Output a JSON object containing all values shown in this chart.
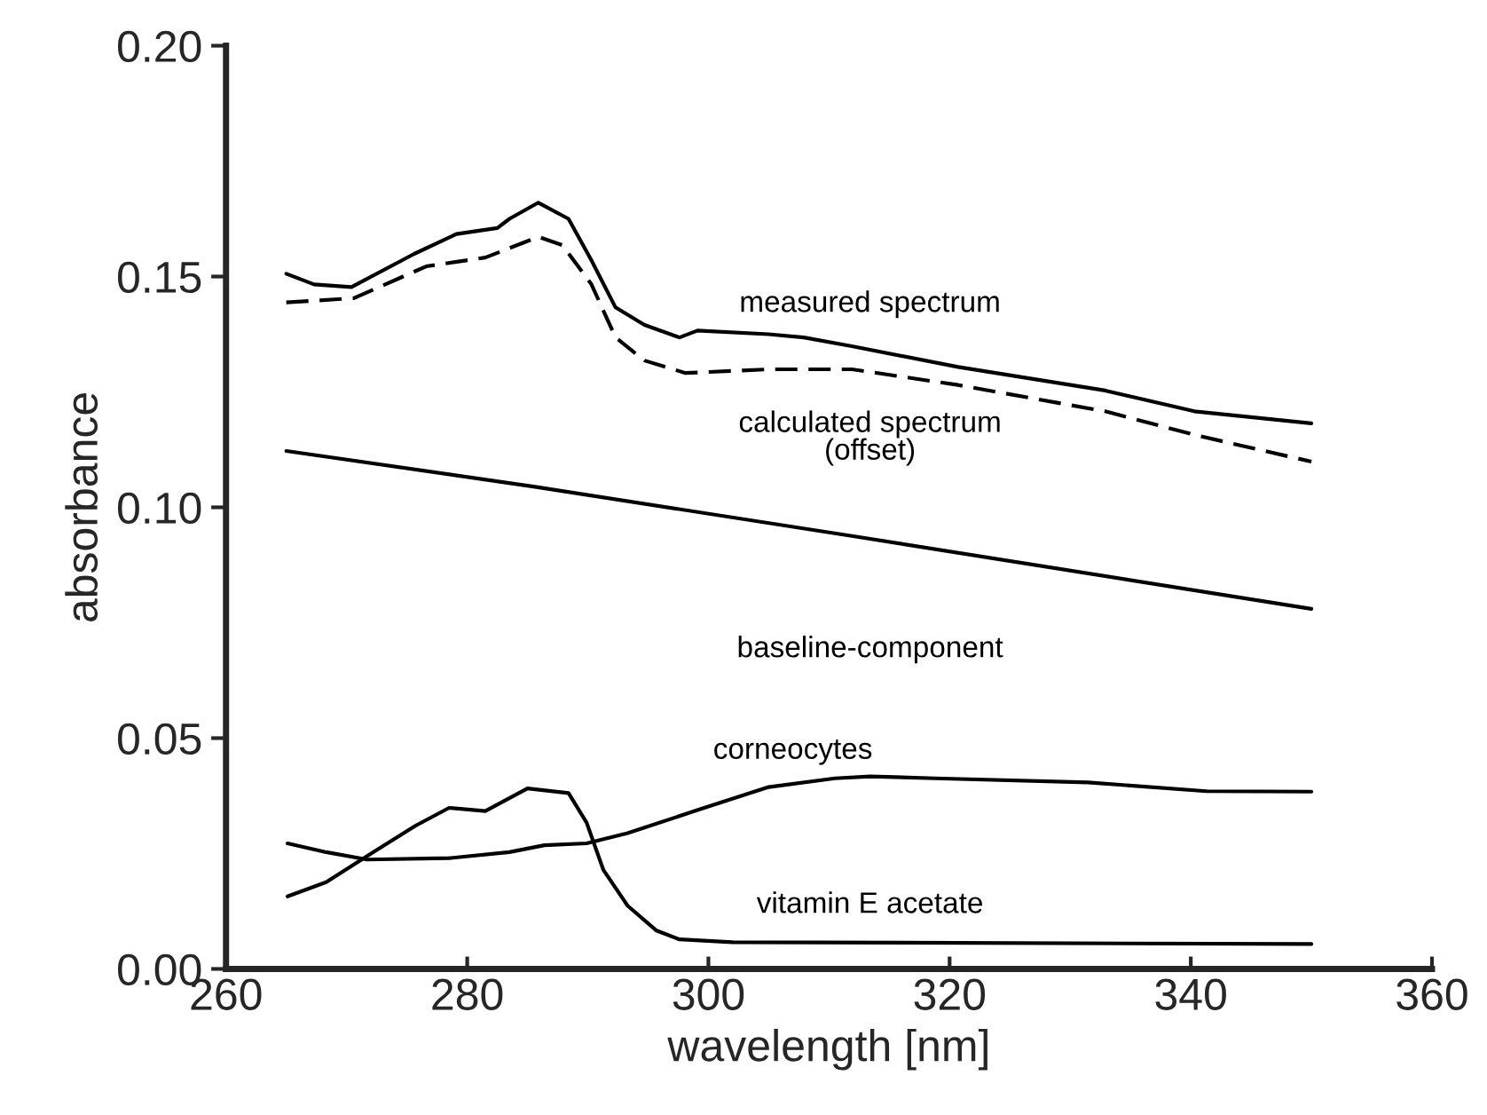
{
  "chart_data": {
    "type": "line",
    "xlabel": "wavelength [nm]",
    "ylabel": "absorbance",
    "xlim": [
      260,
      360
    ],
    "xticks": [
      260,
      280,
      300,
      320,
      340,
      360
    ],
    "ylim": [
      0,
      0.2
    ],
    "yticks": [
      {
        "value": 0,
        "label": "0.00"
      },
      {
        "value": 0.05,
        "label": "0.05"
      },
      {
        "value": 0.1,
        "label": "0.10"
      },
      {
        "value": 0.15,
        "label": "0.15"
      },
      {
        "value": 0.2,
        "label": "0.20"
      }
    ],
    "grid": false,
    "legend": false,
    "series": [
      {
        "name": "measured spectrum",
        "color": "#000000",
        "line_style": "solid",
        "x": [
          265,
          267.3,
          270.4,
          275.6,
          279.1,
          282.5,
          283.5,
          285.9,
          288.4,
          290.3,
          292.3,
          294.7,
          297.6,
          299.1,
          305,
          307.9,
          311.9,
          320.7,
          332.9,
          340.3,
          350
        ],
        "values": [
          0.1506,
          0.1483,
          0.1477,
          0.1549,
          0.1592,
          0.1605,
          0.1625,
          0.166,
          0.1625,
          0.1535,
          0.1433,
          0.1395,
          0.1368,
          0.1383,
          0.1375,
          0.1368,
          0.1349,
          0.1304,
          0.1253,
          0.1208,
          0.1182
        ]
      },
      {
        "name": "calculated spectrum\n(offset)",
        "color": "#000000",
        "line_style": "dashed",
        "x": [
          265,
          270.6,
          276.6,
          281.5,
          285.9,
          287.9,
          290.3,
          292.3,
          294.7,
          298.1,
          305,
          311.9,
          320.7,
          332.9,
          340.3,
          350
        ],
        "values": [
          0.1444,
          0.1453,
          0.1522,
          0.1541,
          0.1586,
          0.1568,
          0.1483,
          0.1368,
          0.1318,
          0.1291,
          0.1299,
          0.1299,
          0.1265,
          0.1208,
          0.1157,
          0.1099
        ]
      },
      {
        "name": "baseline-component",
        "color": "#000000",
        "line_style": "solid",
        "x": [
          265,
          285.5,
          311.9,
          350
        ],
        "values": [
          0.1122,
          0.1045,
          0.0938,
          0.078
        ]
      },
      {
        "name": "corneocytes",
        "color": "#000000",
        "line_style": "solid",
        "x": [
          265.1,
          268.3,
          271.7,
          278.5,
          283.5,
          286.4,
          289.9,
          293.3,
          299.2,
          305,
          310.5,
          313.4,
          318.8,
          331.5,
          341.3,
          350
        ],
        "values": [
          0.0272,
          0.0253,
          0.0237,
          0.024,
          0.0253,
          0.0268,
          0.0272,
          0.0294,
          0.0345,
          0.0394,
          0.0413,
          0.0417,
          0.0413,
          0.0404,
          0.0385,
          0.0384
        ]
      },
      {
        "name": "vitamin E acetate",
        "color": "#000000",
        "line_style": "solid",
        "x": [
          265.1,
          268.3,
          272.2,
          275.7,
          278.5,
          281.5,
          285,
          288.4,
          289.9,
          291.3,
          293.3,
          295.7,
          297.6,
          302,
          350
        ],
        "values": [
          0.0157,
          0.0188,
          0.0253,
          0.031,
          0.0349,
          0.0342,
          0.0391,
          0.0381,
          0.0317,
          0.0214,
          0.0137,
          0.0083,
          0.0064,
          0.0058,
          0.0054
        ]
      }
    ]
  }
}
